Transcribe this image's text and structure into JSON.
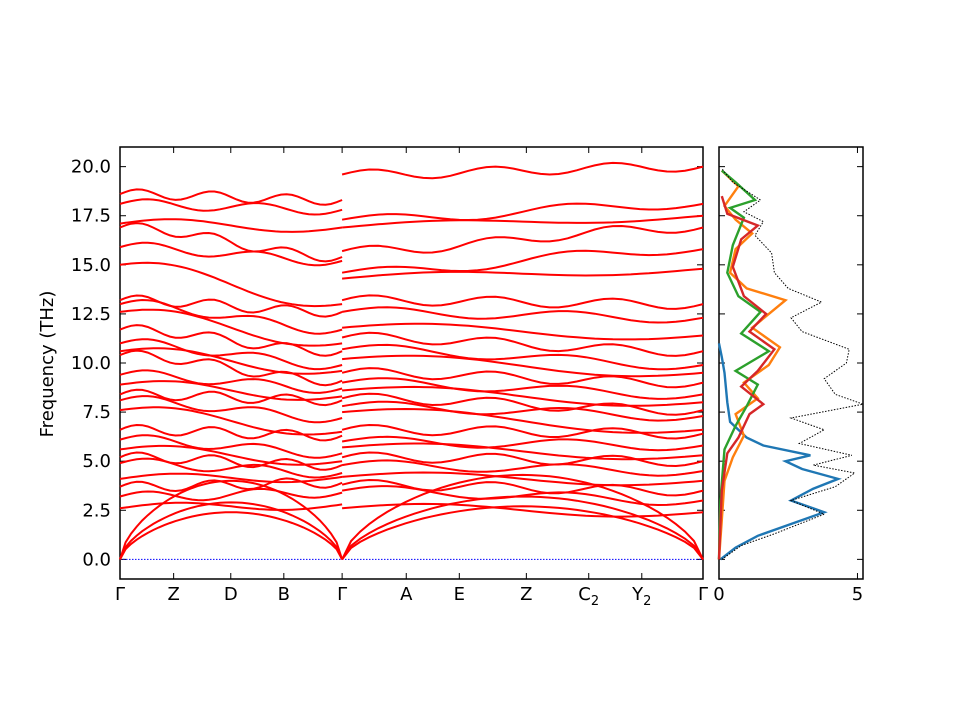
{
  "chart_data": [
    {
      "type": "line",
      "title": "",
      "xlabel": "",
      "ylabel": "Frequency (THz)",
      "ylim": [
        -1.0,
        21.0
      ],
      "y_ticks": [
        "0.0",
        "2.5",
        "5.0",
        "7.5",
        "10.0",
        "12.5",
        "15.0",
        "17.5",
        "20.0"
      ],
      "path_labels": [
        {
          "name": "Γ",
          "sub": "",
          "x": 0.0
        },
        {
          "name": "Z",
          "sub": "",
          "x": 0.092
        },
        {
          "name": "D",
          "sub": "",
          "x": 0.19
        },
        {
          "name": "B",
          "sub": "",
          "x": 0.281
        },
        {
          "name": "Γ",
          "sub": "",
          "x": 0.381
        },
        {
          "name": "A",
          "sub": "",
          "x": 0.491
        },
        {
          "name": "E",
          "sub": "",
          "x": 0.582
        },
        {
          "name": "Z",
          "sub": "",
          "x": 0.697
        },
        {
          "name": "C",
          "sub": "2",
          "x": 0.804
        },
        {
          "name": "Y",
          "sub": "2",
          "x": 0.895
        },
        {
          "name": "Γ",
          "sub": "",
          "x": 1.0
        }
      ],
      "discontinuity_x": 0.381,
      "series_color": "#ff0000",
      "zero_line_color": "#0000ff",
      "segments": [
        {
          "x0": 0.0,
          "x1": 0.381,
          "start": [
            0,
            0,
            0,
            2.6,
            3.2,
            3.7,
            4.1,
            4.9,
            5.2,
            5.6,
            6.1,
            6.6,
            7.6,
            8.1,
            8.4,
            8.9,
            9.4,
            10.4,
            10.6,
            11.0,
            11.7,
            12.6,
            13.0,
            13.2,
            15.0,
            15.9,
            16.9,
            17.1,
            18.1,
            18.6
          ],
          "end": [
            0,
            0,
            0,
            2.8,
            3.4,
            3.9,
            4.2,
            4.4,
            4.8,
            5.0,
            5.4,
            6.3,
            6.5,
            7.2,
            8.1,
            8.3,
            8.7,
            9.1,
            9.6,
            9.9,
            10.6,
            11.0,
            11.7,
            12.6,
            13.0,
            15.2,
            15.4,
            16.9,
            17.8,
            18.3
          ]
        },
        {
          "x0": 0.381,
          "x1": 1.0,
          "start": [
            0,
            0,
            0,
            2.6,
            3.5,
            3.8,
            4.2,
            4.8,
            5.2,
            5.7,
            6.0,
            6.6,
            7.5,
            7.8,
            8.2,
            8.6,
            9.0,
            9.5,
            10.2,
            10.7,
            11.3,
            11.8,
            12.6,
            13.2,
            14.3,
            14.6,
            15.7,
            16.9,
            17.3,
            19.6
          ],
          "end": [
            0,
            0,
            0,
            2.4,
            3.0,
            3.5,
            4.0,
            4.5,
            5.0,
            5.3,
            5.8,
            6.4,
            6.6,
            7.3,
            7.6,
            8.0,
            8.4,
            9.0,
            9.5,
            9.9,
            10.6,
            11.4,
            12.3,
            13.0,
            14.8,
            15.8,
            16.9,
            17.5,
            18.1,
            20.0
          ]
        }
      ]
    },
    {
      "type": "line",
      "title": "",
      "xlabel": "",
      "ylabel": "",
      "xlim": [
        0,
        5.2
      ],
      "x_ticks": [
        "0",
        "5"
      ],
      "series": [
        {
          "color": "#1f77b4",
          "points": [
            [
              0.05,
              0.0
            ],
            [
              0.6,
              0.6
            ],
            [
              1.4,
              1.2
            ],
            [
              2.6,
              1.8
            ],
            [
              3.8,
              2.4
            ],
            [
              2.6,
              3.0
            ],
            [
              3.4,
              3.6
            ],
            [
              4.3,
              4.1
            ],
            [
              3.0,
              4.6
            ],
            [
              2.4,
              5.0
            ],
            [
              3.3,
              5.3
            ],
            [
              1.6,
              5.8
            ],
            [
              1.0,
              6.2
            ],
            [
              0.4,
              7.0
            ],
            [
              0.3,
              8.0
            ],
            [
              0.2,
              9.5
            ],
            [
              0.1,
              10.3
            ],
            [
              0.0,
              11.0
            ]
          ]
        },
        {
          "color": "#ff7f0e",
          "points": [
            [
              0.0,
              0.0
            ],
            [
              0.1,
              2.0
            ],
            [
              0.2,
              4.0
            ],
            [
              0.5,
              5.2
            ],
            [
              0.9,
              6.3
            ],
            [
              0.6,
              7.4
            ],
            [
              1.4,
              8.2
            ],
            [
              0.9,
              9.0
            ],
            [
              1.8,
              9.9
            ],
            [
              2.2,
              10.8
            ],
            [
              1.2,
              11.8
            ],
            [
              2.4,
              13.2
            ],
            [
              1.0,
              13.8
            ],
            [
              0.4,
              14.6
            ],
            [
              0.6,
              15.8
            ],
            [
              1.2,
              16.6
            ],
            [
              0.6,
              17.3
            ],
            [
              0.2,
              18.0
            ],
            [
              0.7,
              19.0
            ],
            [
              0.1,
              19.8
            ]
          ]
        },
        {
          "color": "#2ca02c",
          "points": [
            [
              0.0,
              0.0
            ],
            [
              0.05,
              3.0
            ],
            [
              0.2,
              5.6
            ],
            [
              0.6,
              6.8
            ],
            [
              1.0,
              7.8
            ],
            [
              1.4,
              8.9
            ],
            [
              0.6,
              9.6
            ],
            [
              1.8,
              10.6
            ],
            [
              0.8,
              11.5
            ],
            [
              1.5,
              12.6
            ],
            [
              0.7,
              13.4
            ],
            [
              0.3,
              14.6
            ],
            [
              0.5,
              16.0
            ],
            [
              0.9,
              17.4
            ],
            [
              0.4,
              17.9
            ],
            [
              1.3,
              18.3
            ],
            [
              0.6,
              19.2
            ],
            [
              0.1,
              19.8
            ]
          ]
        },
        {
          "color": "#d62728",
          "points": [
            [
              0.0,
              0.0
            ],
            [
              0.1,
              3.5
            ],
            [
              0.3,
              5.4
            ],
            [
              0.7,
              6.2
            ],
            [
              1.1,
              7.4
            ],
            [
              1.6,
              7.9
            ],
            [
              0.8,
              8.8
            ],
            [
              1.4,
              9.6
            ],
            [
              2.0,
              10.7
            ],
            [
              1.1,
              11.6
            ],
            [
              1.7,
              12.5
            ],
            [
              0.9,
              13.4
            ],
            [
              0.5,
              14.9
            ],
            [
              0.8,
              16.3
            ],
            [
              1.4,
              17.0
            ],
            [
              0.3,
              17.6
            ],
            [
              0.1,
              18.5
            ]
          ]
        },
        {
          "color": "#000000",
          "dotted": true,
          "points": [
            [
              0.1,
              0.0
            ],
            [
              0.8,
              0.7
            ],
            [
              2.0,
              1.3
            ],
            [
              3.8,
              2.3
            ],
            [
              2.6,
              3.0
            ],
            [
              4.2,
              3.7
            ],
            [
              4.9,
              4.4
            ],
            [
              3.4,
              4.8
            ],
            [
              4.8,
              5.3
            ],
            [
              2.9,
              5.9
            ],
            [
              3.8,
              6.6
            ],
            [
              2.6,
              7.2
            ],
            [
              5.2,
              7.9
            ],
            [
              4.2,
              8.4
            ],
            [
              3.8,
              9.2
            ],
            [
              4.6,
              10.0
            ],
            [
              4.7,
              10.7
            ],
            [
              3.0,
              11.6
            ],
            [
              2.6,
              12.3
            ],
            [
              3.7,
              13.1
            ],
            [
              2.5,
              13.8
            ],
            [
              2.0,
              14.6
            ],
            [
              1.9,
              15.6
            ],
            [
              1.3,
              16.5
            ],
            [
              1.6,
              17.2
            ],
            [
              0.9,
              17.7
            ],
            [
              1.5,
              18.3
            ],
            [
              0.5,
              19.2
            ],
            [
              0.1,
              19.9
            ]
          ]
        }
      ]
    }
  ]
}
